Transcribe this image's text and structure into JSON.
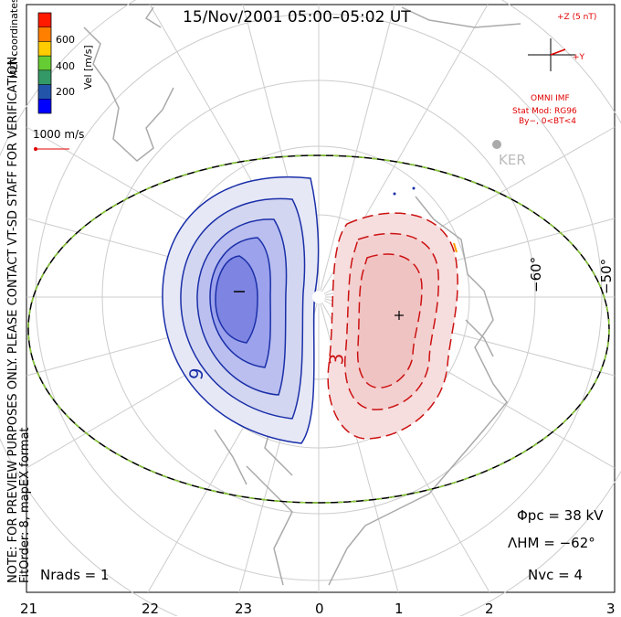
{
  "title": "15/Nov/2001 05:00–05:02 UT",
  "side_note": {
    "line1": "NOTE: FOR PREVIEW PURPOSES ONLY. PLEASE CONTACT VT-SD STAFF FOR VERIFICATION.",
    "line2": "FitOrder: 8, mapEX format"
  },
  "coordinates_label": "MLT coordinates",
  "velocity_scale": {
    "unit_label": "Vel [m/s]",
    "ticks": [
      "600",
      "400",
      "200"
    ],
    "colors": [
      "#ff1a00",
      "#ff7f00",
      "#ffcc00",
      "#66cc33",
      "#339966",
      "#2255aa",
      "#0000ff"
    ]
  },
  "vector_reference": "1000 m/s",
  "imf": {
    "z_label": "+Z (5 nT)",
    "y_label": "+Y",
    "source": "OMNI IMF",
    "model": "Stat Mod: RG96",
    "condition": "By−, 0<BT<4"
  },
  "station": "KER",
  "latitude_labels": [
    "−60°",
    "−50°"
  ],
  "mlt_labels": [
    "21",
    "22",
    "23",
    "0",
    "1",
    "2",
    "3"
  ],
  "contour_labels": {
    "negative": "6",
    "positive": "3"
  },
  "stats": {
    "phi_pc": "Φpc = 38 kV",
    "lambda_hm": "ΛHM = −62°",
    "n_rads": "Nrads = 1",
    "n_vc": "Nvc = 4"
  },
  "colors": {
    "negative_contour": "#1a2fa8",
    "positive_contour": "#cc1111",
    "negative_fill": "#5b5fd6",
    "positive_fill": "#f2b8b8",
    "grid": "#cccccc",
    "coastline": "#aaaaaa",
    "boundary_dash": "#88cc33"
  }
}
